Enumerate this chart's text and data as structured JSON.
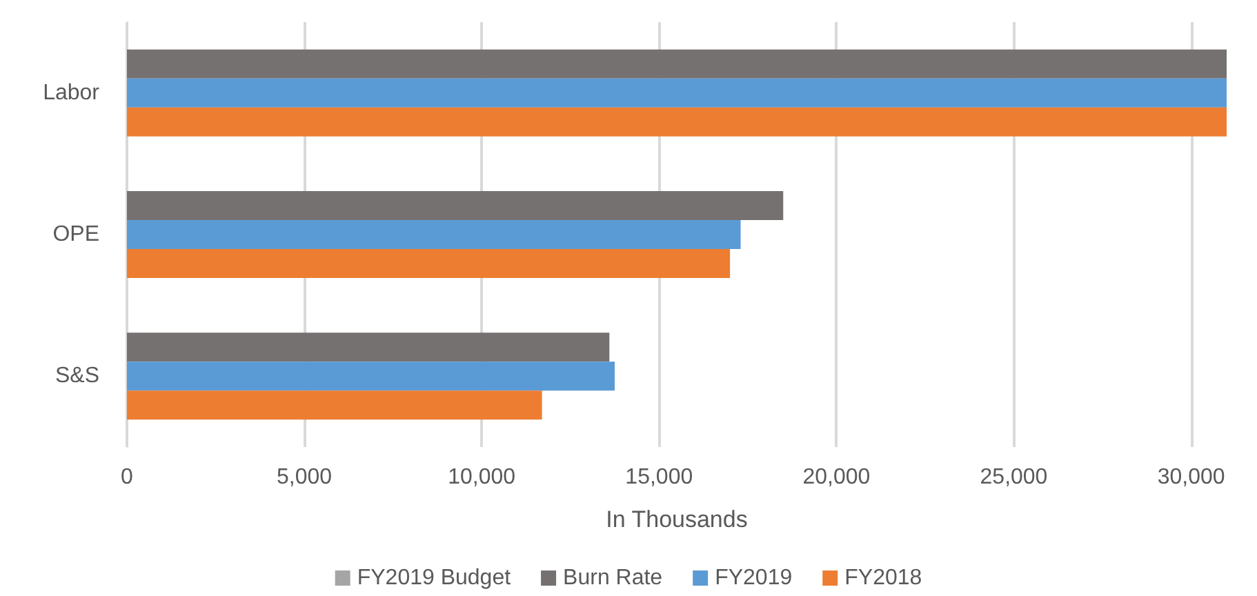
{
  "chart_data": {
    "type": "bar",
    "orientation": "horizontal",
    "xlabel": "In Thousands",
    "categories": [
      "Labor",
      "OPE",
      "S&S"
    ],
    "series": [
      {
        "name": "FY2019 Budget",
        "color": "#a5a5a5",
        "values": [
          null,
          null,
          null
        ]
      },
      {
        "name": "Burn Rate",
        "color": "#767171",
        "values": [
          31000,
          18500,
          13600
        ]
      },
      {
        "name": "FY2019",
        "color": "#5b9bd5",
        "values": [
          31000,
          17300,
          13750
        ]
      },
      {
        "name": "FY2018",
        "color": "#ed7d31",
        "values": [
          31000,
          17000,
          11700
        ]
      }
    ],
    "xlim": [
      0,
      31000
    ],
    "xticks": [
      0,
      {
        "value": 5000,
        "label": "5,000"
      },
      {
        "value": 10000,
        "label": "10,000"
      },
      {
        "value": 15000,
        "label": "15,000"
      },
      {
        "value": 20000,
        "label": "20,000"
      },
      {
        "value": 25000,
        "label": "25,000"
      },
      {
        "value": 30000,
        "label": "30,000"
      }
    ],
    "grid": "x",
    "legend": "bottom"
  }
}
